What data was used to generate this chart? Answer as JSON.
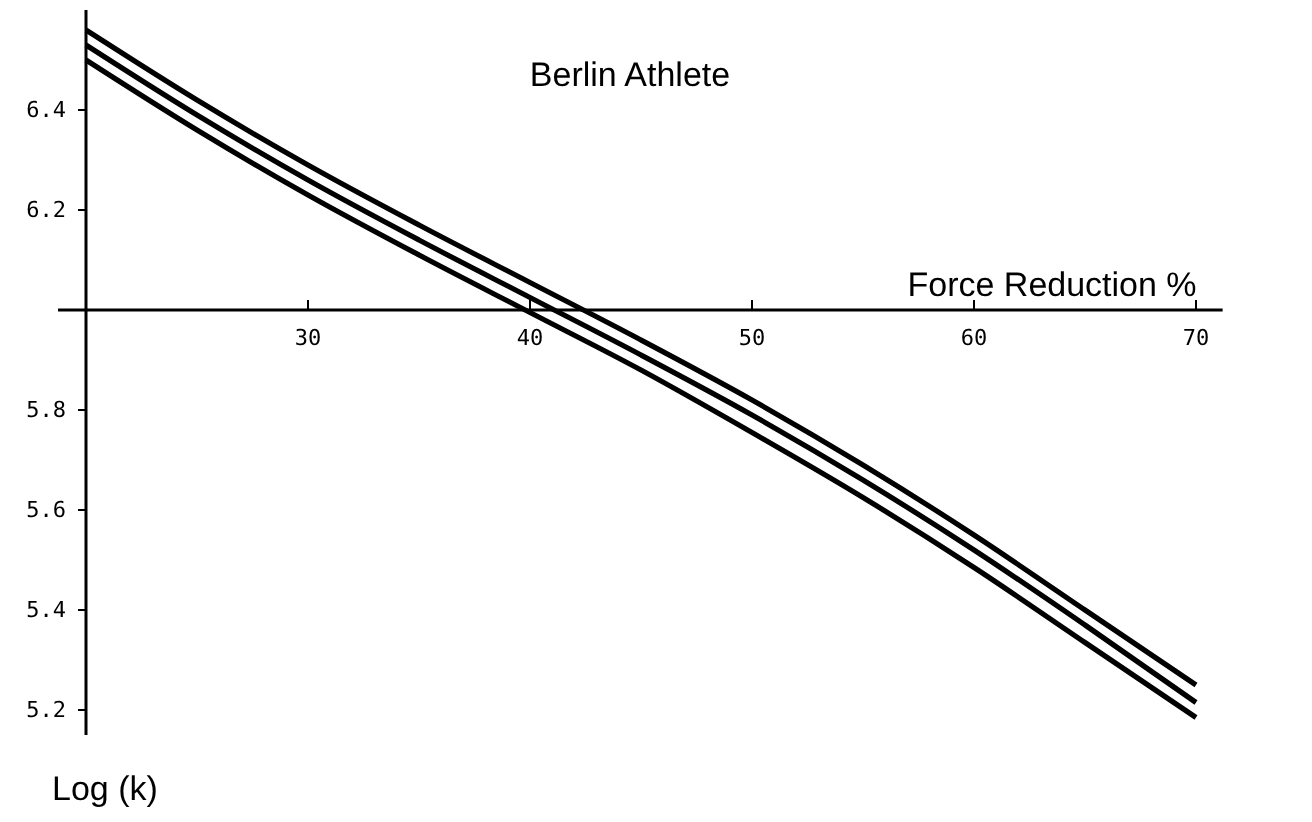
{
  "chart_data": {
    "type": "line",
    "title": "Berlin Athlete",
    "xlabel": "Force Reduction %",
    "ylabel": "Log (k)",
    "x": [
      20,
      25,
      30,
      35,
      40,
      45,
      50,
      55,
      60,
      65,
      70
    ],
    "xlim": [
      20,
      71.2
    ],
    "ylim": [
      5.15,
      6.6
    ],
    "xticks": [
      30,
      40,
      50,
      60,
      70
    ],
    "yticks": [
      5.2,
      5.4,
      5.6,
      5.8,
      6.2,
      6.4
    ],
    "series": [
      {
        "color": "#000000",
        "values": [
          6.56,
          6.42,
          6.29,
          6.17,
          6.055,
          5.94,
          5.82,
          5.69,
          5.55,
          5.4,
          5.25
        ]
      },
      {
        "color": "#000000",
        "values": [
          6.53,
          6.39,
          6.26,
          6.14,
          6.025,
          5.91,
          5.79,
          5.66,
          5.52,
          5.37,
          5.215
        ]
      },
      {
        "color": "#000000",
        "values": [
          6.5,
          6.36,
          6.23,
          6.11,
          5.995,
          5.88,
          5.755,
          5.625,
          5.485,
          5.335,
          5.185
        ]
      }
    ],
    "marker": "none",
    "line_style": "solid"
  }
}
